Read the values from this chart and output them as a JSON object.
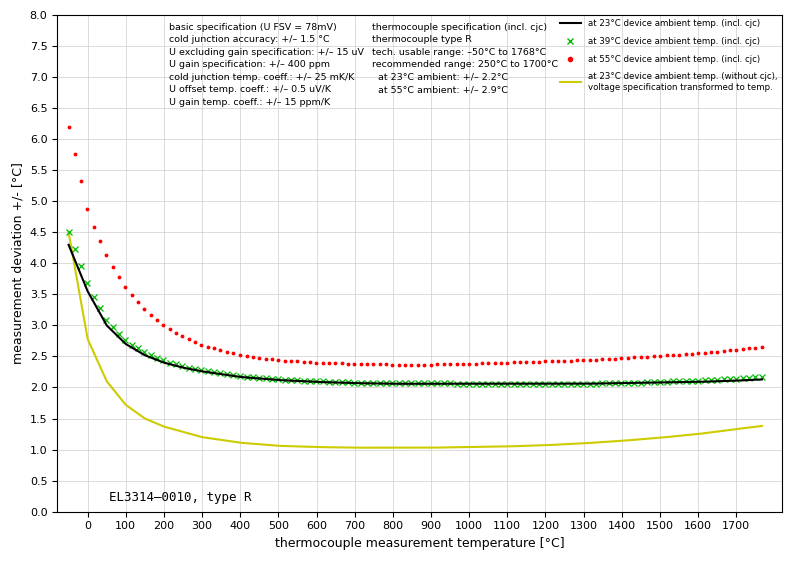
{
  "xlabel": "thermocouple measurement temperature [°C]",
  "ylabel": "measurement deviation +/- [°C]",
  "xlim": [
    -80,
    1820
  ],
  "ylim": [
    0,
    8
  ],
  "xticks": [
    0,
    100,
    200,
    300,
    400,
    500,
    600,
    700,
    800,
    900,
    1000,
    1100,
    1200,
    1300,
    1400,
    1500,
    1600,
    1700
  ],
  "yticks": [
    0,
    0.5,
    1.0,
    1.5,
    2.0,
    2.5,
    3.0,
    3.5,
    4.0,
    4.5,
    5.0,
    5.5,
    6.0,
    6.5,
    7.0,
    7.5,
    8.0
  ],
  "annotation": "EL3314–0010, type R",
  "text_left": "basic specification (U FSV = 78mV)\ncold junction accuracy: +/– 1.5 °C\nU excluding gain specification: +/– 15 uV\nU gain specification: +/– 400 ppm\ncold junction temp. coeff.: +/– 25 mK/K\nU offset temp. coeff.: +/– 0.5 uV/K\nU gain temp. coeff.: +/– 15 ppm/K",
  "text_right": "thermocouple specification (incl. cjc)\nthermocouple type R\ntech. usable range: –50°C to 1768°C\nrecommended range: 250°C to 1700°C\n  at 23°C ambient: +/– 2.2°C\n  at 55°C ambient: +/– 2.9°C",
  "leg_23": "at 23°C device ambient temp. (incl. cjc)",
  "leg_39": "at 39°C device ambient temp. (incl. cjc)",
  "leg_55": "at 55°C device ambient temp. (incl. cjc)",
  "leg_nojc": "at 23°C device ambient temp. (without cjc),\nvoltage specification transformed to temp.",
  "color_23": "#000000",
  "color_39": "#00bb00",
  "color_55": "#ff0000",
  "color_nojc": "#cccc00",
  "bg": "#ffffff",
  "curve_black_T": [
    -50,
    0,
    50,
    100,
    150,
    200,
    250,
    300,
    400,
    500,
    600,
    700,
    800,
    900,
    1000,
    1100,
    1200,
    1300,
    1400,
    1500,
    1600,
    1700,
    1768
  ],
  "curve_black_Y": [
    4.3,
    3.55,
    3.0,
    2.7,
    2.52,
    2.4,
    2.32,
    2.26,
    2.17,
    2.12,
    2.09,
    2.07,
    2.06,
    2.06,
    2.06,
    2.06,
    2.06,
    2.06,
    2.07,
    2.08,
    2.09,
    2.11,
    2.13
  ],
  "curve_green_T": [
    -50,
    0,
    50,
    100,
    150,
    200,
    250,
    300,
    400,
    500,
    600,
    700,
    800,
    900,
    1000,
    1100,
    1200,
    1300,
    1400,
    1500,
    1600,
    1700,
    1768
  ],
  "curve_green_Y": [
    4.5,
    3.65,
    3.07,
    2.75,
    2.56,
    2.43,
    2.34,
    2.28,
    2.18,
    2.13,
    2.1,
    2.08,
    2.07,
    2.07,
    2.06,
    2.06,
    2.06,
    2.06,
    2.07,
    2.09,
    2.11,
    2.14,
    2.17
  ],
  "curve_red_T": [
    -50,
    0,
    50,
    100,
    150,
    200,
    250,
    300,
    400,
    500,
    600,
    700,
    800,
    900,
    1000,
    1100,
    1200,
    1300,
    1400,
    1500,
    1600,
    1700,
    1768
  ],
  "curve_red_Y": [
    6.2,
    4.82,
    4.1,
    3.6,
    3.25,
    3.0,
    2.82,
    2.68,
    2.52,
    2.44,
    2.4,
    2.38,
    2.37,
    2.37,
    2.38,
    2.4,
    2.42,
    2.44,
    2.47,
    2.51,
    2.55,
    2.61,
    2.65
  ],
  "curve_yellow_T": [
    -50,
    0,
    50,
    100,
    150,
    200,
    300,
    400,
    500,
    600,
    700,
    800,
    900,
    1000,
    1100,
    1200,
    1300,
    1400,
    1500,
    1600,
    1700,
    1768
  ],
  "curve_yellow_Y": [
    4.5,
    2.78,
    2.1,
    1.72,
    1.5,
    1.37,
    1.2,
    1.11,
    1.06,
    1.04,
    1.03,
    1.03,
    1.03,
    1.04,
    1.05,
    1.07,
    1.1,
    1.14,
    1.19,
    1.25,
    1.33,
    1.38
  ]
}
